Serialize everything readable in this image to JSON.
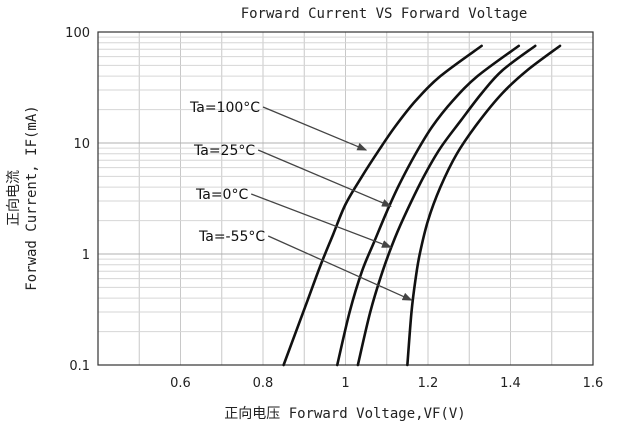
{
  "chart_data": {
    "type": "line",
    "title": "Forward Current VS Forward Voltage",
    "xlabel": "正向电压 Forward Voltage,VF(V)",
    "ylabel_cn": "正向电流",
    "ylabel": "Forwad Current, IF(mA)",
    "xscale": "linear",
    "yscale": "log",
    "xlim": [
      0.4,
      1.6
    ],
    "ylim": [
      0.1,
      100
    ],
    "x_ticks": [
      0.6,
      0.8,
      1.0,
      1.2,
      1.4,
      1.6
    ],
    "x_tick_labels": [
      "0.6",
      "0.8",
      "1",
      "1.2",
      "1.4",
      "1.6"
    ],
    "y_ticks": [
      0.1,
      1,
      10,
      100
    ],
    "y_tick_labels": [
      "0.1",
      "1",
      "10",
      "100"
    ],
    "grid": true,
    "series": [
      {
        "name": "Ta=100°C",
        "points": [
          [
            0.85,
            0.1
          ],
          [
            0.88,
            0.2
          ],
          [
            0.91,
            0.4
          ],
          [
            0.94,
            0.8
          ],
          [
            0.97,
            1.5
          ],
          [
            1.0,
            2.8
          ],
          [
            1.04,
            5
          ],
          [
            1.08,
            8.5
          ],
          [
            1.12,
            14
          ],
          [
            1.17,
            24
          ],
          [
            1.23,
            40
          ],
          [
            1.33,
            75
          ]
        ]
      },
      {
        "name": "Ta=25°C",
        "points": [
          [
            0.98,
            0.1
          ],
          [
            1.01,
            0.3
          ],
          [
            1.04,
            0.7
          ],
          [
            1.07,
            1.3
          ],
          [
            1.1,
            2.4
          ],
          [
            1.13,
            4.2
          ],
          [
            1.17,
            8
          ],
          [
            1.21,
            14
          ],
          [
            1.26,
            24
          ],
          [
            1.32,
            40
          ],
          [
            1.42,
            75
          ]
        ]
      },
      {
        "name": "Ta=0°C",
        "points": [
          [
            1.03,
            0.1
          ],
          [
            1.06,
            0.3
          ],
          [
            1.09,
            0.7
          ],
          [
            1.12,
            1.4
          ],
          [
            1.15,
            2.5
          ],
          [
            1.19,
            5
          ],
          [
            1.23,
            9
          ],
          [
            1.28,
            16
          ],
          [
            1.33,
            28
          ],
          [
            1.38,
            45
          ],
          [
            1.46,
            75
          ]
        ]
      },
      {
        "name": "Ta=-55°C",
        "points": [
          [
            1.15,
            0.1
          ],
          [
            1.16,
            0.3
          ],
          [
            1.17,
            0.6
          ],
          [
            1.18,
            1.0
          ],
          [
            1.2,
            2.0
          ],
          [
            1.23,
            4
          ],
          [
            1.27,
            8
          ],
          [
            1.32,
            15
          ],
          [
            1.38,
            28
          ],
          [
            1.44,
            45
          ],
          [
            1.52,
            75
          ]
        ]
      }
    ],
    "annotations": [
      {
        "text": "Ta=100°C",
        "series": 0,
        "point_to": [
          1.06,
          9
        ]
      },
      {
        "text": "Ta=25°C",
        "series": 1,
        "point_to": [
          1.12,
          2.8
        ]
      },
      {
        "text": "Ta=0°C",
        "series": 2,
        "point_to": [
          1.12,
          1.2
        ]
      },
      {
        "text": "Ta=-55°C",
        "series": 3,
        "point_to": [
          1.17,
          0.4
        ]
      }
    ]
  }
}
